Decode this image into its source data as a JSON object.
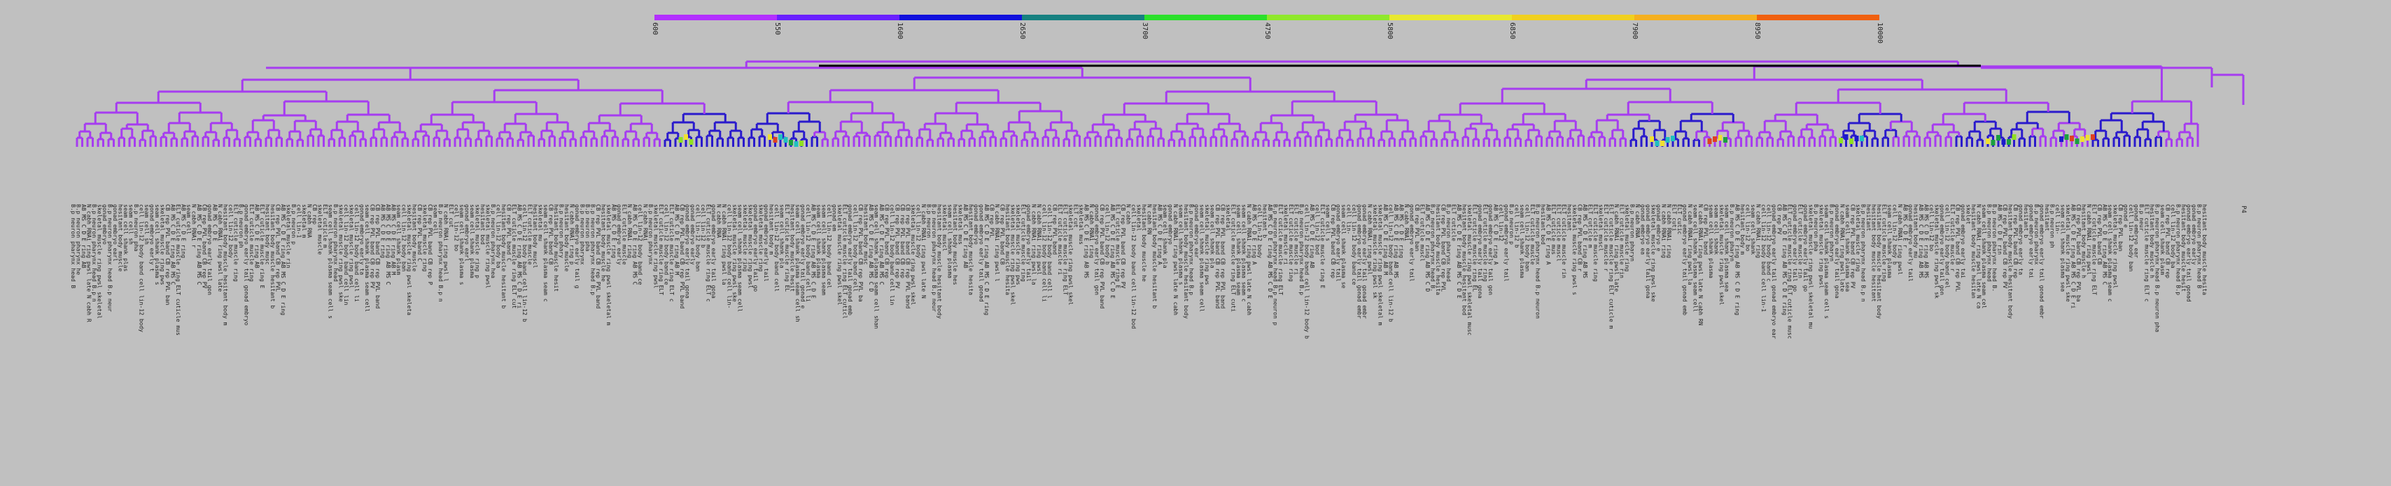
{
  "legend": {
    "colors": [
      "#b330ff",
      "#6a20ff",
      "#1010dd",
      "#168080",
      "#2be02b",
      "#8fe82b",
      "#e8e830",
      "#f0d020",
      "#f5b020",
      "#f06010"
    ],
    "ticks": [
      "600",
      "550",
      "1600",
      "2650",
      "3700",
      "4750",
      "5800",
      "6850",
      "7900",
      "8950",
      "10000"
    ]
  },
  "tree": {
    "colors": {
      "default": "#a63cf0",
      "deep": "#2a1acc",
      "black": "#000000"
    },
    "leaf_heat_colors": [
      "#1aa040",
      "#90e020",
      "#f0e030",
      "#e04020",
      "#20c0c0",
      "#1a1acc"
    ],
    "root_label": "P4"
  },
  "labels": {
    "words": [
      "skeletal",
      "cell",
      "ring",
      "pwsl",
      "muscle",
      "band",
      "body",
      "late",
      "ELT",
      "B.p",
      "N",
      "cabh",
      "RNAi",
      "lin-12",
      "hesitant",
      "head",
      "shank",
      "plasma",
      "CB",
      "rep",
      "PVL",
      "cuticle",
      "seam",
      "gonad",
      "neuron",
      "AB",
      "MS",
      "C",
      "D",
      "E",
      "fish",
      "P1",
      "pharynx",
      "tail",
      "embryo",
      "early"
    ],
    "samples": [
      "skeletal muscle ring pwsl",
      "cell lin-12 body band",
      "ELT cuticle muscle ring",
      "B.p neuron pharynx head",
      "N cabh RNAi ring pwsl late",
      "seam cell shank plasma",
      "CB rep PVL band",
      "hesitant body muscle",
      "gonad embryo early tail",
      "AB MS C D E ring"
    ]
  }
}
